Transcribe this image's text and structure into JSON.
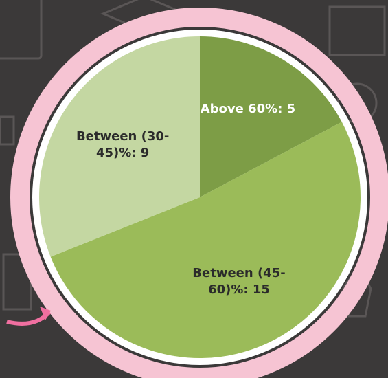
{
  "chart_data": {
    "type": "pie",
    "values": [
      5,
      15,
      9
    ],
    "value_labels": [
      "Above 60%: 5",
      "Between (45-60)%: 15",
      "Between (30-45)%: 9"
    ],
    "colors": [
      "#7d9d46",
      "#9bbb59",
      "#c4d7a2"
    ]
  }
}
